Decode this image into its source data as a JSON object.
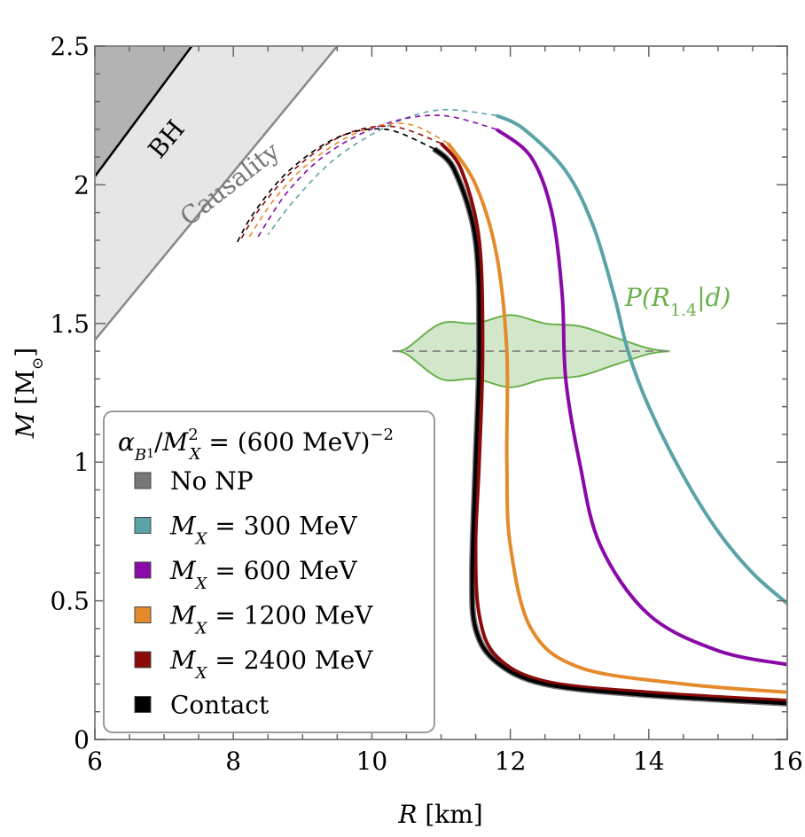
{
  "chart_data": {
    "type": "line",
    "title": "",
    "xlabel": "R",
    "xlabel_unit": "[km]",
    "ylabel": "M",
    "ylabel_unit": "[M⊙]",
    "xlim": [
      6,
      16
    ],
    "ylim": [
      0,
      2.5
    ],
    "x_ticks": [
      6,
      8,
      10,
      12,
      14,
      16
    ],
    "y_ticks": [
      0,
      0.5,
      1,
      1.5,
      2,
      2.5
    ],
    "x_tick_labels": [
      "6",
      "8",
      "10",
      "12",
      "14",
      "16"
    ],
    "y_tick_labels": [
      "0",
      "0.5",
      "1",
      "1.5",
      "2",
      "2.5"
    ],
    "grid": false,
    "legend_position": "bottom-left",
    "legend_title": "αB₁/M²X = (600 MeV)⁻²",
    "series": [
      {
        "name": "No NP",
        "color": "#777777",
        "solid": [
          [
            16.0,
            0.13
          ],
          [
            14.0,
            0.16
          ],
          [
            12.5,
            0.2
          ],
          [
            11.8,
            0.28
          ],
          [
            11.5,
            0.4
          ],
          [
            11.45,
            0.6
          ],
          [
            11.5,
            1.0
          ],
          [
            11.55,
            1.4
          ],
          [
            11.5,
            1.8
          ],
          [
            11.2,
            2.05
          ],
          [
            10.9,
            2.13
          ]
        ],
        "dashed": [
          [
            10.9,
            2.13
          ],
          [
            10.2,
            2.2
          ],
          [
            9.5,
            2.17
          ],
          [
            8.8,
            2.05
          ],
          [
            8.3,
            1.9
          ],
          [
            8.05,
            1.79
          ]
        ]
      },
      {
        "name": "M_X = 300 MeV",
        "color": "#5aa3a6",
        "solid": [
          [
            16.0,
            0.49
          ],
          [
            15.5,
            0.6
          ],
          [
            15.0,
            0.75
          ],
          [
            14.5,
            0.95
          ],
          [
            14.0,
            1.2
          ],
          [
            13.7,
            1.4
          ],
          [
            13.5,
            1.6
          ],
          [
            13.2,
            1.85
          ],
          [
            12.8,
            2.05
          ],
          [
            12.2,
            2.2
          ],
          [
            11.8,
            2.25
          ]
        ],
        "dashed": [
          [
            11.8,
            2.25
          ],
          [
            11.0,
            2.27
          ],
          [
            10.3,
            2.22
          ],
          [
            9.5,
            2.1
          ],
          [
            8.9,
            1.95
          ],
          [
            8.5,
            1.82
          ]
        ]
      },
      {
        "name": "M_X = 600 MeV",
        "color": "#8a0aa8",
        "solid": [
          [
            16.0,
            0.27
          ],
          [
            15.0,
            0.32
          ],
          [
            14.0,
            0.45
          ],
          [
            13.3,
            0.7
          ],
          [
            13.0,
            1.0
          ],
          [
            12.8,
            1.3
          ],
          [
            12.75,
            1.6
          ],
          [
            12.6,
            1.9
          ],
          [
            12.3,
            2.1
          ],
          [
            11.8,
            2.2
          ]
        ],
        "dashed": [
          [
            11.8,
            2.2
          ],
          [
            11.0,
            2.25
          ],
          [
            10.2,
            2.22
          ],
          [
            9.4,
            2.12
          ],
          [
            8.8,
            1.98
          ],
          [
            8.35,
            1.81
          ]
        ]
      },
      {
        "name": "M_X = 1200 MeV",
        "color": "#e58a2c",
        "solid": [
          [
            16.0,
            0.17
          ],
          [
            14.5,
            0.2
          ],
          [
            13.0,
            0.26
          ],
          [
            12.3,
            0.4
          ],
          [
            12.0,
            0.7
          ],
          [
            11.95,
            1.0
          ],
          [
            11.95,
            1.4
          ],
          [
            11.8,
            1.75
          ],
          [
            11.5,
            2.0
          ],
          [
            11.1,
            2.15
          ]
        ],
        "dashed": [
          [
            11.1,
            2.15
          ],
          [
            10.5,
            2.22
          ],
          [
            9.8,
            2.19
          ],
          [
            9.1,
            2.08
          ],
          [
            8.6,
            1.95
          ],
          [
            8.2,
            1.8
          ]
        ]
      },
      {
        "name": "M_X = 2400 MeV",
        "color": "#8a0a0a",
        "solid": [
          [
            16.0,
            0.14
          ],
          [
            14.0,
            0.17
          ],
          [
            12.5,
            0.21
          ],
          [
            11.8,
            0.3
          ],
          [
            11.55,
            0.45
          ],
          [
            11.5,
            0.7
          ],
          [
            11.55,
            1.0
          ],
          [
            11.6,
            1.4
          ],
          [
            11.55,
            1.8
          ],
          [
            11.3,
            2.05
          ],
          [
            11.0,
            2.15
          ]
        ],
        "dashed": [
          [
            11.0,
            2.15
          ],
          [
            10.3,
            2.21
          ],
          [
            9.6,
            2.18
          ],
          [
            8.9,
            2.06
          ],
          [
            8.4,
            1.92
          ],
          [
            8.1,
            1.8
          ]
        ]
      },
      {
        "name": "Contact",
        "color": "#000000",
        "solid": [
          [
            16.0,
            0.13
          ],
          [
            14.0,
            0.16
          ],
          [
            12.5,
            0.2
          ],
          [
            11.8,
            0.28
          ],
          [
            11.5,
            0.4
          ],
          [
            11.45,
            0.6
          ],
          [
            11.5,
            1.0
          ],
          [
            11.55,
            1.4
          ],
          [
            11.5,
            1.8
          ],
          [
            11.2,
            2.05
          ],
          [
            10.9,
            2.13
          ]
        ],
        "dashed": [
          [
            10.9,
            2.13
          ],
          [
            10.2,
            2.2
          ],
          [
            9.5,
            2.17
          ],
          [
            8.8,
            2.05
          ],
          [
            8.3,
            1.9
          ],
          [
            8.05,
            1.79
          ]
        ]
      }
    ],
    "posterior": {
      "label": "P(R1.4|d)",
      "color": "#6ab04c",
      "center_mass": 1.4,
      "x": [
        10.3,
        10.5,
        11.0,
        11.5,
        12.0,
        12.5,
        13.0,
        13.5,
        14.0,
        14.3
      ],
      "half_width": [
        0.0,
        0.01,
        0.1,
        0.1,
        0.13,
        0.1,
        0.09,
        0.05,
        0.01,
        0.0
      ]
    },
    "regions": [
      {
        "name": "BH",
        "color": "#b3b3b3",
        "boundary": [
          [
            6.0,
            2.03
          ],
          [
            7.4,
            2.5
          ]
        ]
      },
      {
        "name": "Causality",
        "color": "#e6e6e6",
        "boundary": [
          [
            6.0,
            1.44
          ],
          [
            9.5,
            2.5
          ]
        ]
      }
    ]
  }
}
